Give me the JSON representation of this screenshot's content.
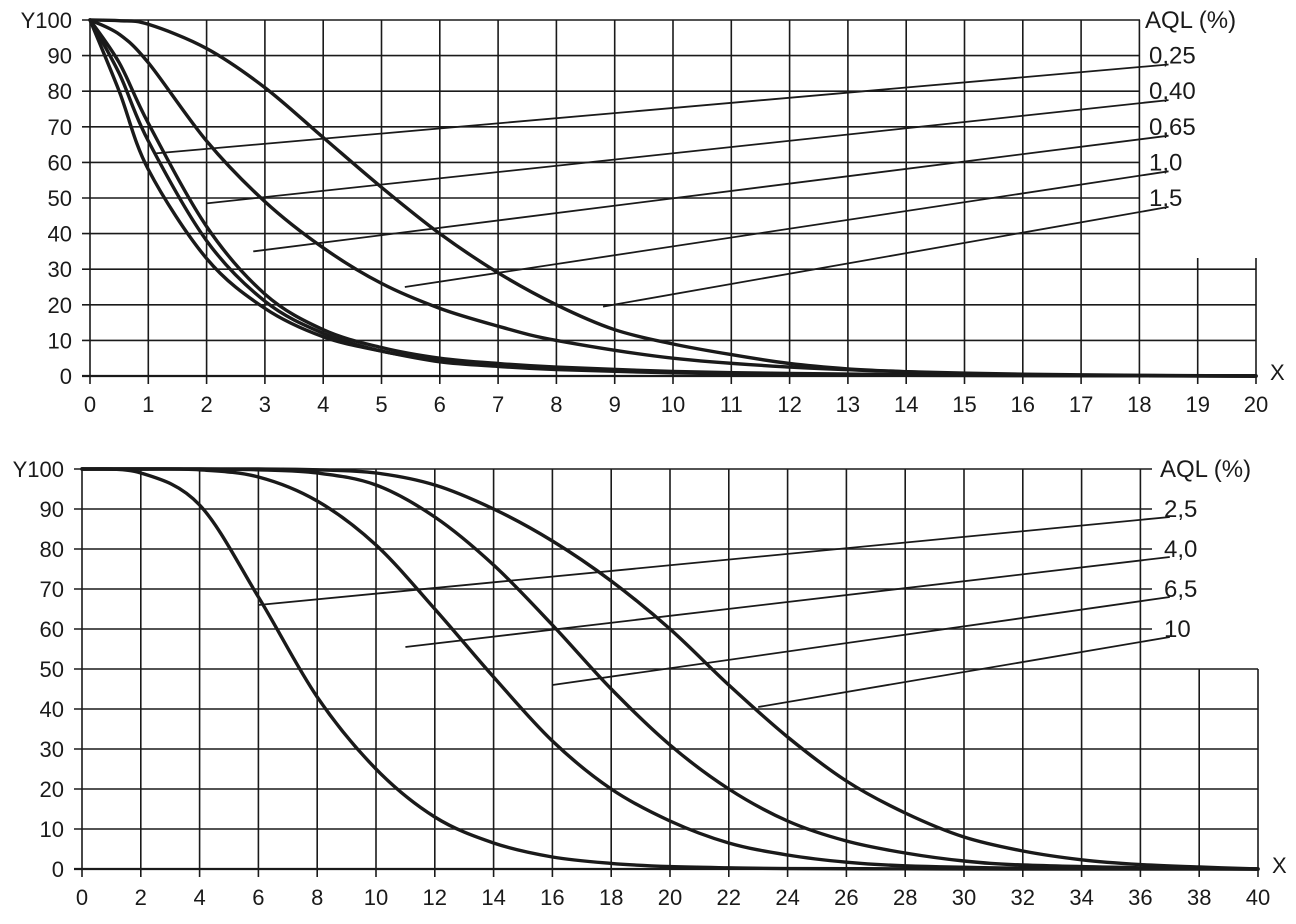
{
  "chart_data": [
    {
      "type": "line",
      "ylabel": "Y",
      "xlabel": "X",
      "xlim": [
        0,
        20
      ],
      "ylim": [
        0,
        100
      ],
      "x_ticks": [
        0,
        1,
        2,
        3,
        4,
        5,
        6,
        7,
        8,
        9,
        10,
        11,
        12,
        13,
        14,
        15,
        16,
        17,
        18,
        19,
        20
      ],
      "y_ticks": [
        0,
        10,
        20,
        30,
        40,
        50,
        60,
        70,
        80,
        90,
        100
      ],
      "grid": true,
      "legend_title": "AQL (%)",
      "legend_position": "right",
      "series": [
        {
          "name": "0,25",
          "x": [
            0,
            0.5,
            1,
            2,
            3,
            4,
            5,
            6,
            7,
            8,
            9,
            10,
            11,
            12,
            13,
            14,
            15,
            16,
            17,
            18,
            20
          ],
          "y": [
            100,
            99.8,
            98.8,
            92,
            81,
            67,
            53,
            40,
            29,
            20,
            13,
            9,
            6,
            3.5,
            2,
            1.2,
            0.6,
            0.3,
            0.2,
            0.1,
            0
          ]
        },
        {
          "name": "0,40",
          "x": [
            0,
            0.5,
            1,
            2,
            3,
            4,
            5,
            6,
            7,
            8,
            10,
            12,
            14,
            16,
            18,
            20
          ],
          "y": [
            100,
            96,
            88,
            66,
            49,
            36,
            26,
            19,
            14,
            10,
            5,
            2.5,
            1.2,
            0.5,
            0.2,
            0
          ]
        },
        {
          "name": "0,65",
          "x": [
            0,
            0.5,
            1,
            2,
            3,
            4,
            5,
            6,
            7,
            8,
            10,
            12,
            14,
            16,
            20
          ],
          "y": [
            100,
            88,
            71,
            42,
            23,
            13,
            8,
            5,
            3.5,
            2.5,
            1.3,
            0.7,
            0.4,
            0.2,
            0
          ]
        },
        {
          "name": "1,0",
          "x": [
            0,
            0.5,
            1,
            2,
            3,
            4,
            5,
            6,
            7,
            8,
            10,
            12,
            14,
            16,
            20
          ],
          "y": [
            100,
            85,
            66,
            38,
            21,
            12,
            7,
            4.5,
            3,
            2,
            1,
            0.5,
            0.3,
            0.1,
            0
          ]
        },
        {
          "name": "1,5",
          "x": [
            0,
            0.5,
            1,
            2,
            3,
            4,
            5,
            6,
            7,
            8,
            10,
            12,
            14,
            16,
            20
          ],
          "y": [
            100,
            80,
            58,
            33,
            19,
            11,
            7,
            4,
            2.7,
            1.8,
            0.9,
            0.4,
            0.2,
            0.1,
            0
          ]
        }
      ],
      "leaders": [
        {
          "name": "0,25",
          "from": [
            1.1,
            62.5
          ],
          "to": [
            18.5,
            87.5
          ]
        },
        {
          "name": "0,40",
          "from": [
            2,
            48.5
          ],
          "to": [
            18.5,
            77.5
          ]
        },
        {
          "name": "0,65",
          "from": [
            2.8,
            35
          ],
          "to": [
            18.5,
            67.5
          ]
        },
        {
          "name": "1,0",
          "from": [
            5.4,
            25
          ],
          "to": [
            18.5,
            57.5
          ]
        },
        {
          "name": "1,5",
          "from": [
            8.8,
            19.5
          ],
          "to": [
            18.5,
            47.5
          ]
        }
      ]
    },
    {
      "type": "line",
      "ylabel": "Y",
      "xlabel": "X",
      "xlim": [
        0,
        40
      ],
      "ylim": [
        0,
        100
      ],
      "x_ticks": [
        0,
        2,
        4,
        6,
        8,
        10,
        12,
        14,
        16,
        18,
        20,
        22,
        24,
        26,
        28,
        30,
        32,
        34,
        36,
        38,
        40
      ],
      "y_ticks": [
        0,
        10,
        20,
        30,
        40,
        50,
        60,
        70,
        80,
        90,
        100
      ],
      "grid": true,
      "legend_title": "AQL (%)",
      "legend_position": "right",
      "series": [
        {
          "name": "2,5",
          "x": [
            0,
            2,
            4,
            6,
            8,
            10,
            12,
            14,
            16,
            18,
            20,
            22,
            24,
            26,
            28,
            30,
            32,
            34,
            36,
            38,
            40
          ],
          "y": [
            100,
            100,
            100,
            100,
            99.8,
            99,
            96,
            90,
            82,
            72,
            60,
            46,
            33,
            22,
            14,
            8,
            4.5,
            2.3,
            1.1,
            0.5,
            0
          ]
        },
        {
          "name": "4,0",
          "x": [
            0,
            2,
            4,
            6,
            8,
            10,
            12,
            14,
            16,
            18,
            20,
            22,
            24,
            26,
            28,
            30,
            32,
            36,
            40
          ],
          "y": [
            100,
            100,
            100,
            99.8,
            99,
            96,
            88,
            76,
            61,
            45,
            31,
            20,
            12,
            7,
            4,
            2,
            1,
            0.3,
            0
          ]
        },
        {
          "name": "6,5",
          "x": [
            0,
            2,
            4,
            6,
            8,
            10,
            12,
            14,
            16,
            18,
            20,
            22,
            24,
            26,
            28,
            32,
            36,
            40
          ],
          "y": [
            100,
            100,
            99.8,
            98,
            92,
            81,
            65,
            48,
            32,
            20,
            12,
            6.5,
            3.5,
            1.7,
            0.8,
            0.2,
            0.1,
            0
          ]
        },
        {
          "name": "10",
          "x": [
            0,
            2,
            4,
            6,
            8,
            10,
            12,
            14,
            16,
            18,
            20,
            22,
            24,
            28,
            32,
            40
          ],
          "y": [
            100,
            99,
            91,
            68,
            43,
            25,
            13,
            6.5,
            3,
            1.4,
            0.6,
            0.3,
            0.1,
            0.05,
            0,
            0
          ]
        }
      ],
      "leaders": [
        {
          "name": "2,5",
          "from": [
            6,
            66
          ],
          "to": [
            37,
            88
          ]
        },
        {
          "name": "4,0",
          "from": [
            11,
            55.5
          ],
          "to": [
            37,
            78
          ]
        },
        {
          "name": "6,5",
          "from": [
            16,
            46
          ],
          "to": [
            37,
            68
          ]
        },
        {
          "name": "10",
          "from": [
            23,
            40.5
          ],
          "to": [
            37,
            58
          ]
        }
      ]
    }
  ]
}
